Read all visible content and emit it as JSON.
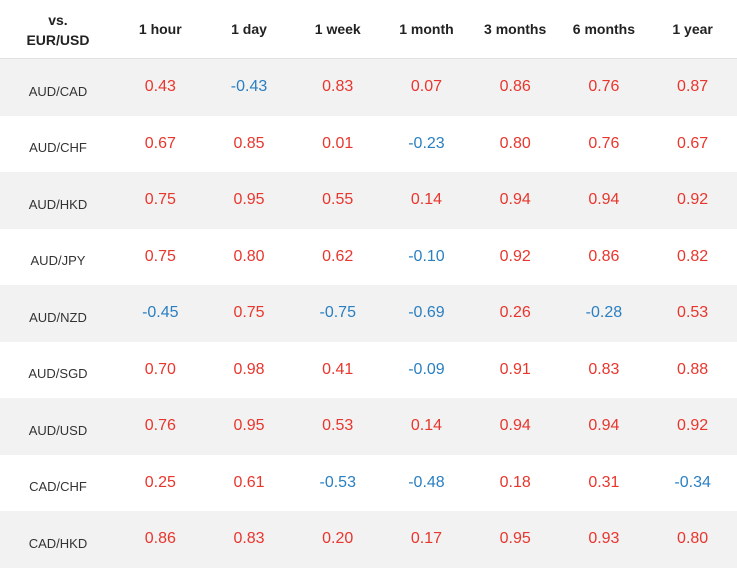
{
  "header": {
    "base_line1": "vs.",
    "base_line2": "EUR/USD",
    "periods": [
      "1 hour",
      "1 day",
      "1 week",
      "1 month",
      "3 months",
      "6 months",
      "1 year"
    ]
  },
  "colors": {
    "positive": "#e8362d",
    "negative": "#2a7fc1",
    "row_stripe": "#f2f2f2"
  },
  "rows": [
    {
      "pair": "AUD/CAD",
      "values": [
        "0.43",
        "-0.43",
        "0.83",
        "0.07",
        "0.86",
        "0.76",
        "0.87"
      ]
    },
    {
      "pair": "AUD/CHF",
      "values": [
        "0.67",
        "0.85",
        "0.01",
        "-0.23",
        "0.80",
        "0.76",
        "0.67"
      ]
    },
    {
      "pair": "AUD/HKD",
      "values": [
        "0.75",
        "0.95",
        "0.55",
        "0.14",
        "0.94",
        "0.94",
        "0.92"
      ]
    },
    {
      "pair": "AUD/JPY",
      "values": [
        "0.75",
        "0.80",
        "0.62",
        "-0.10",
        "0.92",
        "0.86",
        "0.82"
      ]
    },
    {
      "pair": "AUD/NZD",
      "values": [
        "-0.45",
        "0.75",
        "-0.75",
        "-0.69",
        "0.26",
        "-0.28",
        "0.53"
      ]
    },
    {
      "pair": "AUD/SGD",
      "values": [
        "0.70",
        "0.98",
        "0.41",
        "-0.09",
        "0.91",
        "0.83",
        "0.88"
      ]
    },
    {
      "pair": "AUD/USD",
      "values": [
        "0.76",
        "0.95",
        "0.53",
        "0.14",
        "0.94",
        "0.94",
        "0.92"
      ]
    },
    {
      "pair": "CAD/CHF",
      "values": [
        "0.25",
        "0.61",
        "-0.53",
        "-0.48",
        "0.18",
        "0.31",
        "-0.34"
      ]
    },
    {
      "pair": "CAD/HKD",
      "values": [
        "0.86",
        "0.83",
        "0.20",
        "0.17",
        "0.95",
        "0.93",
        "0.80"
      ]
    }
  ]
}
